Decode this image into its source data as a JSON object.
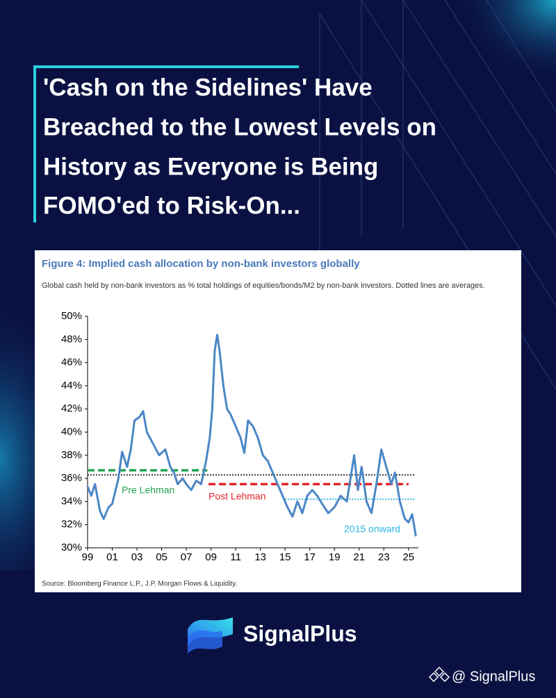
{
  "header": {
    "title_lines": [
      "'Cash on the Sidelines' Have",
      "Breached to the Lowest Levels on",
      "History as Everyone is Being",
      "FOMO'ed to Risk-On..."
    ]
  },
  "chart_data": {
    "type": "line",
    "title": "Figure 4: Implied cash allocation by non-bank investors globally",
    "subtitle": "Global cash held by non-bank investors as % total holdings of equities/bonds/M2 by non-bank investors. Dotted lines are averages.",
    "source": "Source: Bloomberg Finance L.P., J.P. Morgan Flows & Liquidity.",
    "xlim": [
      1999,
      2025.8
    ],
    "ylim": [
      30,
      50
    ],
    "xticks": [
      {
        "value": 1999,
        "label": "99"
      },
      {
        "value": 2001,
        "label": "01"
      },
      {
        "value": 2003,
        "label": "03"
      },
      {
        "value": 2005,
        "label": "05"
      },
      {
        "value": 2007,
        "label": "07"
      },
      {
        "value": 2009,
        "label": "09"
      },
      {
        "value": 2011,
        "label": "11"
      },
      {
        "value": 2013,
        "label": "13"
      },
      {
        "value": 2015,
        "label": "15"
      },
      {
        "value": 2017,
        "label": "17"
      },
      {
        "value": 2019,
        "label": "19"
      },
      {
        "value": 2021,
        "label": "21"
      },
      {
        "value": 2023,
        "label": "23"
      },
      {
        "value": 2025,
        "label": "25"
      }
    ],
    "yticks": [
      {
        "value": 30,
        "label": "30%"
      },
      {
        "value": 32,
        "label": "32%"
      },
      {
        "value": 34,
        "label": "34%"
      },
      {
        "value": 36,
        "label": "36%"
      },
      {
        "value": 38,
        "label": "38%"
      },
      {
        "value": 40,
        "label": "40%"
      },
      {
        "value": 42,
        "label": "42%"
      },
      {
        "value": 44,
        "label": "44%"
      },
      {
        "value": 46,
        "label": "46%"
      },
      {
        "value": 48,
        "label": "48%"
      },
      {
        "value": 50,
        "label": "50%"
      }
    ],
    "series": [
      {
        "color": "#4a86c5",
        "x": [
          1999.0,
          1999.3,
          1999.6,
          2000.0,
          2000.3,
          2000.7,
          2001.0,
          2001.5,
          2001.8,
          2002.2,
          2002.5,
          2002.8,
          2003.2,
          2003.5,
          2003.8,
          2004.3,
          2004.8,
          2005.3,
          2005.7,
          2006.0,
          2006.3,
          2006.7,
          2007.0,
          2007.4,
          2007.8,
          2008.2,
          2008.6,
          2008.9,
          2009.1,
          2009.3,
          2009.5,
          2009.7,
          2010.0,
          2010.3,
          2010.6,
          2011.0,
          2011.4,
          2011.7,
          2012.0,
          2012.4,
          2012.8,
          2013.2,
          2013.6,
          2014.0,
          2014.4,
          2014.8,
          2015.2,
          2015.6,
          2016.0,
          2016.4,
          2016.8,
          2017.2,
          2017.6,
          2018.0,
          2018.5,
          2019.0,
          2019.5,
          2020.0,
          2020.3,
          2020.6,
          2020.9,
          2021.2,
          2021.6,
          2022.0,
          2022.4,
          2022.8,
          2023.2,
          2023.6,
          2023.9,
          2024.3,
          2024.7,
          2025.0,
          2025.3,
          2025.6
        ],
        "values": [
          35.3,
          34.5,
          35.5,
          33.2,
          32.5,
          33.5,
          33.8,
          36.0,
          38.3,
          37.0,
          38.5,
          41.0,
          41.3,
          41.8,
          40.0,
          39.0,
          38.0,
          38.5,
          37.0,
          36.5,
          35.5,
          36.0,
          35.5,
          35.0,
          35.8,
          35.5,
          37.5,
          39.5,
          42.0,
          47.0,
          48.4,
          47.0,
          44.0,
          42.0,
          41.5,
          40.5,
          39.5,
          38.2,
          41.0,
          40.5,
          39.5,
          38.0,
          37.5,
          36.5,
          35.5,
          34.5,
          33.5,
          32.7,
          34.0,
          33.0,
          34.5,
          35.0,
          34.5,
          33.8,
          33.0,
          33.5,
          34.5,
          34.0,
          36.0,
          38.0,
          35.0,
          37.0,
          34.0,
          33.0,
          35.5,
          38.5,
          37.0,
          35.5,
          36.5,
          34.0,
          32.5,
          32.2,
          32.9,
          31.0
        ]
      }
    ],
    "reference_lines": [
      {
        "value": 36.3,
        "x": [
          1999,
          2025.5
        ],
        "color": "#222222",
        "style": "dotted"
      },
      {
        "label": "Pre Lehman",
        "value": 36.7,
        "x": [
          1999,
          2008.7
        ],
        "color": "#22a350",
        "style": "dashed"
      },
      {
        "label": "Post Lehman",
        "value": 35.5,
        "x": [
          2008.8,
          2025
        ],
        "color": "#e3262b",
        "style": "dashed"
      },
      {
        "label": "2015 onward",
        "value": 34.2,
        "x": [
          2015,
          2025.5
        ],
        "color": "#2bb7e0",
        "style": "dotted"
      }
    ]
  },
  "brand": {
    "name": "SignalPlus",
    "handle": "@ SignalPlus"
  }
}
